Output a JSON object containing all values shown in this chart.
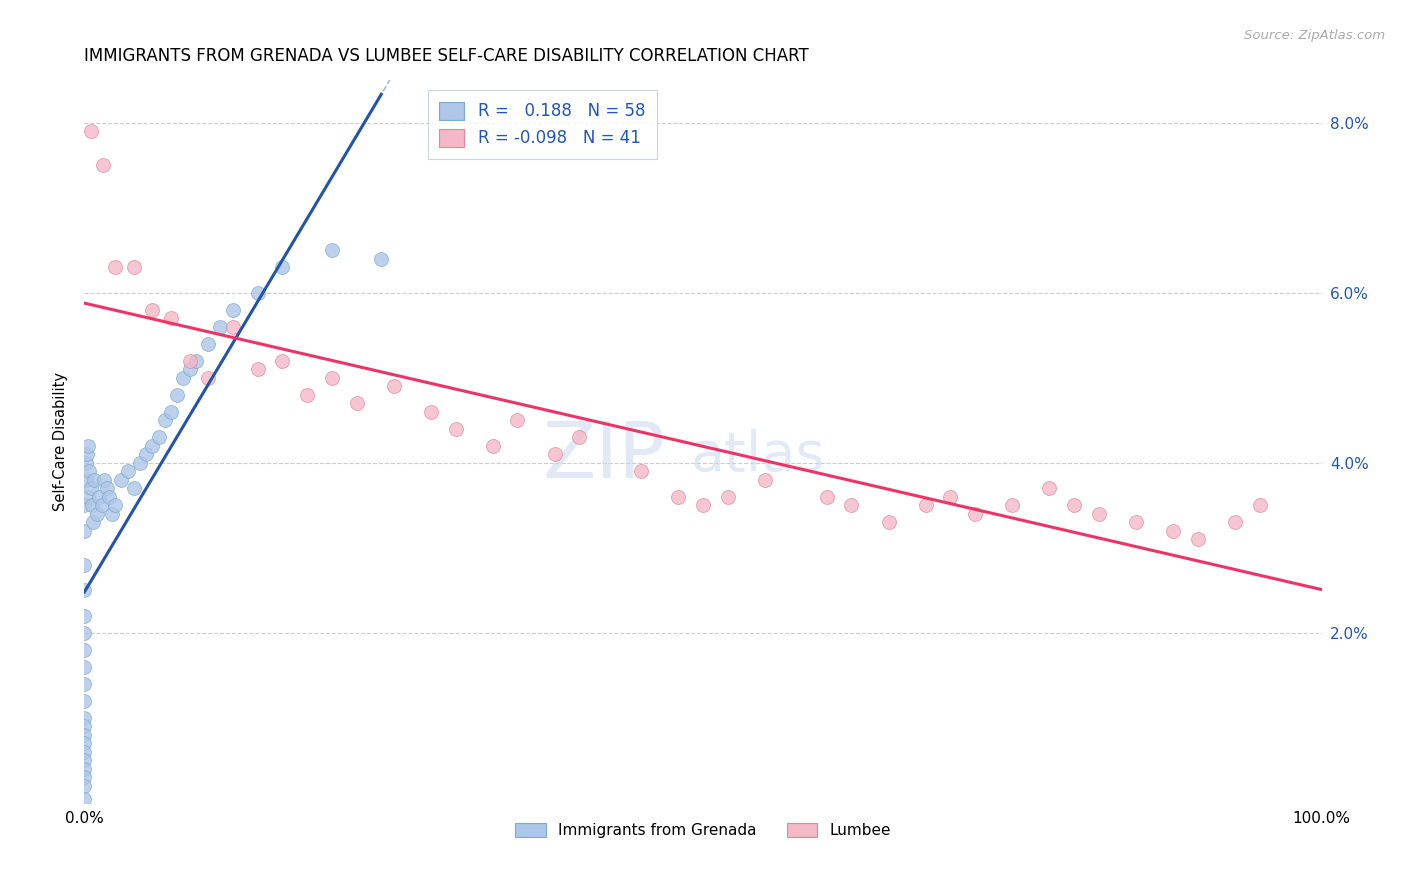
{
  "title": "IMMIGRANTS FROM GRENADA VS LUMBEE SELF-CARE DISABILITY CORRELATION CHART",
  "source": "Source: ZipAtlas.com",
  "ylabel": "Self-Care Disability",
  "background_color": "#ffffff",
  "grid_color": "#cccccc",
  "blue_color": "#aec6e8",
  "blue_edge": "#7aaad0",
  "pink_color": "#f4b8c8",
  "pink_edge": "#e08898",
  "blue_line_color": "#2255aa",
  "pink_line_color": "#ee3366",
  "diag_color": "#aabbcc",
  "R_blue": 0.188,
  "N_blue": 58,
  "R_pink": -0.098,
  "N_pink": 41,
  "label_blue": "Immigrants from Grenada",
  "label_pink": "Lumbee",
  "legend_text_color": "#2255bb",
  "xlim": [
    0,
    100
  ],
  "ylim": [
    0,
    8.5
  ],
  "yticks": [
    0,
    2,
    4,
    6,
    8
  ],
  "xticks": [
    0,
    100
  ],
  "blue_x": [
    0.0,
    0.0,
    0.0,
    0.0,
    0.0,
    0.0,
    0.0,
    0.0,
    0.0,
    0.0,
    0.0,
    0.0,
    0.0,
    0.0,
    0.0,
    0.0,
    0.0,
    0.0,
    0.0,
    0.0,
    0.1,
    0.1,
    0.2,
    0.3,
    0.3,
    0.4,
    0.5,
    0.6,
    0.7,
    0.8,
    1.0,
    1.2,
    1.4,
    1.6,
    1.8,
    2.0,
    2.2,
    2.5,
    3.0,
    3.5,
    4.0,
    4.5,
    5.0,
    5.5,
    6.0,
    6.5,
    7.0,
    7.5,
    8.0,
    8.5,
    9.0,
    10.0,
    11.0,
    12.0,
    14.0,
    16.0,
    20.0,
    24.0
  ],
  "blue_y": [
    3.5,
    3.2,
    2.8,
    2.5,
    2.2,
    2.0,
    1.8,
    1.6,
    1.4,
    1.2,
    1.0,
    0.9,
    0.8,
    0.7,
    0.6,
    0.5,
    0.4,
    0.3,
    0.2,
    0.05,
    4.0,
    3.8,
    4.1,
    4.2,
    3.6,
    3.9,
    3.7,
    3.5,
    3.3,
    3.8,
    3.4,
    3.6,
    3.5,
    3.8,
    3.7,
    3.6,
    3.4,
    3.5,
    3.8,
    3.9,
    3.7,
    4.0,
    4.1,
    4.2,
    4.3,
    4.5,
    4.6,
    4.8,
    5.0,
    5.1,
    5.2,
    5.4,
    5.6,
    5.8,
    6.0,
    6.3,
    6.5,
    6.4
  ],
  "pink_x": [
    0.5,
    1.5,
    2.5,
    4.0,
    5.5,
    7.0,
    8.5,
    10.0,
    12.0,
    14.0,
    16.0,
    18.0,
    20.0,
    22.0,
    25.0,
    28.0,
    30.0,
    33.0,
    35.0,
    38.0,
    40.0,
    45.0,
    48.0,
    50.0,
    52.0,
    55.0,
    60.0,
    62.0,
    65.0,
    68.0,
    70.0,
    72.0,
    75.0,
    78.0,
    80.0,
    82.0,
    85.0,
    88.0,
    90.0,
    93.0,
    95.0
  ],
  "pink_y": [
    7.9,
    7.5,
    6.3,
    6.3,
    5.8,
    5.7,
    5.2,
    5.0,
    5.6,
    5.1,
    5.2,
    4.8,
    5.0,
    4.7,
    4.9,
    4.6,
    4.4,
    4.2,
    4.5,
    4.1,
    4.3,
    3.9,
    3.6,
    3.5,
    3.6,
    3.8,
    3.6,
    3.5,
    3.3,
    3.5,
    3.6,
    3.4,
    3.5,
    3.7,
    3.5,
    3.4,
    3.3,
    3.2,
    3.1,
    3.3,
    3.5
  ]
}
